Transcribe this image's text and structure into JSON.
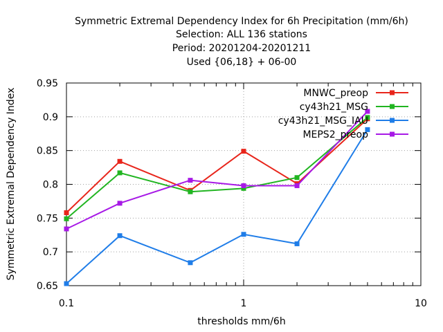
{
  "chart_data": {
    "type": "line",
    "title_lines": [
      "Symmetric Extremal Dependency Index  for 6h Precipitation (mm/6h)",
      "Selection: ALL    136 stations",
      "Period: 20201204-20201211",
      "Used {06,18} + 06-00"
    ],
    "xlabel": "thresholds mm/6h",
    "ylabel": "Symmetric Extremal Dependency Index",
    "x_scale": "log",
    "xlim": [
      0.1,
      10
    ],
    "ylim": [
      0.65,
      0.95
    ],
    "x_tick_labels": [
      "0.1",
      "1",
      "10"
    ],
    "x_ticks": [
      0.1,
      1,
      10
    ],
    "y_tick_labels": [
      "0.65",
      "0.7",
      "0.75",
      "0.8",
      "0.85",
      "0.9",
      "0.95"
    ],
    "y_ticks": [
      0.65,
      0.7,
      0.75,
      0.8,
      0.85,
      0.9,
      0.95
    ],
    "grid": true,
    "legend_position": "top-right",
    "x": [
      0.1,
      0.2,
      0.5,
      1,
      2,
      5
    ],
    "series": [
      {
        "name": "MNWC_preop",
        "color": "#e8251b",
        "values": [
          0.758,
          0.834,
          0.791,
          0.849,
          0.801,
          0.897
        ]
      },
      {
        "name": "cy43h21_MSG",
        "color": "#21b521",
        "values": [
          0.749,
          0.817,
          0.789,
          0.794,
          0.81,
          0.899
        ]
      },
      {
        "name": "cy43h21_MSG_IAU",
        "color": "#1f7de8",
        "values": [
          0.653,
          0.724,
          0.684,
          0.726,
          0.712,
          0.881
        ]
      },
      {
        "name": "MEPS2_preop",
        "color": "#a719e6",
        "values": [
          0.734,
          0.772,
          0.806,
          0.798,
          0.798,
          0.908
        ]
      }
    ]
  }
}
